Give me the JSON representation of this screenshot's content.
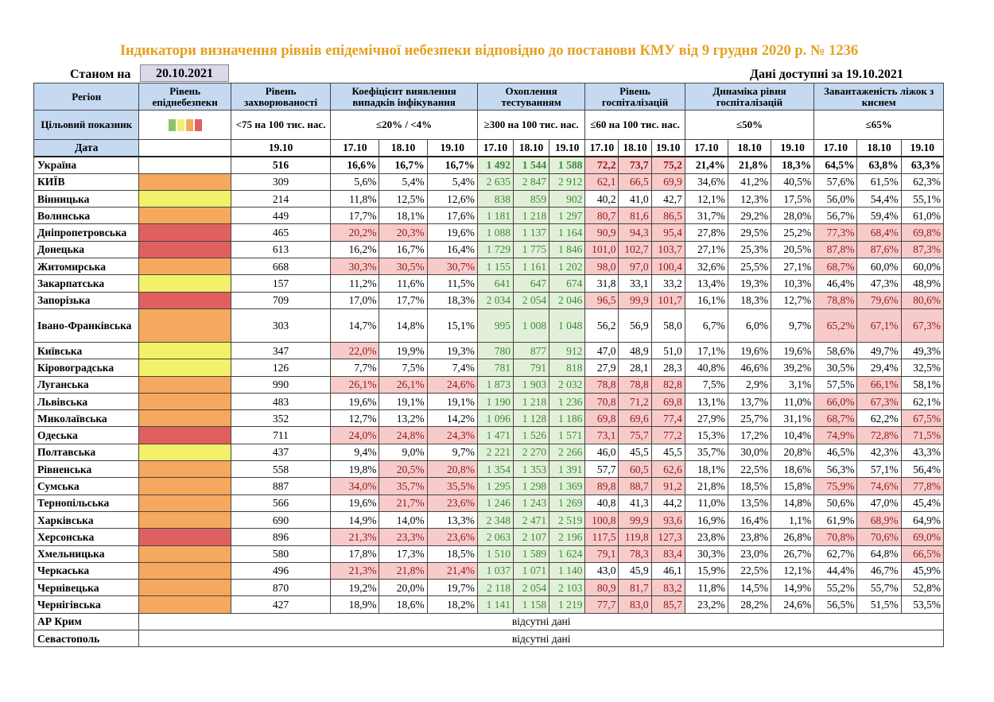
{
  "title": "Індикатори визначення рівнів епідемічної небезпеки відповідно до постанови КМУ від 9 грудня 2020 р. № 1236",
  "as_of_label": "Станом на",
  "as_of_date": "20.10.2021",
  "available_text": "Дані доступні за 19.10.2021",
  "colors": {
    "orange": "#f5a95e",
    "yellow": "#f3f06a",
    "red": "#e06060",
    "green_bg": "#e2f0d9",
    "red_bg": "#f8cbcb",
    "header_bg": "#c5d9f1"
  },
  "headers": {
    "region": "Регіон",
    "level": "Рівень епіднебезпеки",
    "incidence": "Рівень захворюваності",
    "detection": "Коефіцієнт виявлення випадків інфікування",
    "testing": "Охоплення тестуванням",
    "hosp": "Рівень госпіталізацій",
    "hosp_dyn": "Динаміка рівня госпіталізацій",
    "beds": "Завантаженість ліжок з киснем"
  },
  "targets": {
    "label": "Цільовий показник",
    "incidence": "<75 на 100 тис. нас.",
    "detection": "≤20% / <4%",
    "testing": "≥300 на 100 тис. нас.",
    "hosp": "≤60 на 100 тис. нас.",
    "hosp_dyn": "≤50%",
    "beds": "≤65%"
  },
  "dates": {
    "label": "Дата",
    "d1": "17.10",
    "d2": "18.10",
    "d3": "19.10"
  },
  "legend_colors": [
    "#8ec36a",
    "#f3f06a",
    "#f5a95e",
    "#e06060"
  ],
  "missing_text": "відсутні дані",
  "rows": [
    {
      "name": "Україна",
      "level": "",
      "inc": "516",
      "det": [
        "16,6%",
        "16,7%",
        "16,7%"
      ],
      "test": [
        "1 492",
        "1 544",
        "1 588"
      ],
      "hosp": [
        "72,2",
        "73,7",
        "75,2"
      ],
      "dyn": [
        "21,4%",
        "21,8%",
        "18,3%"
      ],
      "beds": [
        "64,5%",
        "63,8%",
        "63,3%"
      ]
    },
    {
      "name": "КИЇВ",
      "level": "orange",
      "inc": "309",
      "det": [
        "5,6%",
        "5,4%",
        "5,4%"
      ],
      "test": [
        "2 635",
        "2 847",
        "2 912"
      ],
      "hosp": [
        "62,1",
        "66,5",
        "69,9"
      ],
      "dyn": [
        "34,6%",
        "41,2%",
        "40,5%"
      ],
      "beds": [
        "57,6%",
        "61,5%",
        "62,3%"
      ]
    },
    {
      "name": "Вінницька",
      "level": "yellow",
      "inc": "214",
      "det": [
        "11,8%",
        "12,5%",
        "12,6%"
      ],
      "test": [
        "838",
        "859",
        "902"
      ],
      "hosp": [
        "40,2",
        "41,0",
        "42,7"
      ],
      "dyn": [
        "12,1%",
        "12,3%",
        "17,5%"
      ],
      "beds": [
        "56,0%",
        "54,4%",
        "55,1%"
      ]
    },
    {
      "name": "Волинська",
      "level": "orange",
      "inc": "449",
      "det": [
        "17,7%",
        "18,1%",
        "17,6%"
      ],
      "test": [
        "1 181",
        "1 218",
        "1 297"
      ],
      "hosp": [
        "80,7",
        "81,6",
        "86,5"
      ],
      "dyn": [
        "31,7%",
        "29,2%",
        "28,0%"
      ],
      "beds": [
        "56,7%",
        "59,4%",
        "61,0%"
      ]
    },
    {
      "name": "Дніпропетровська",
      "level": "red",
      "inc": "465",
      "det": [
        "20,2%",
        "20,3%",
        "19,6%"
      ],
      "test": [
        "1 088",
        "1 137",
        "1 164"
      ],
      "hosp": [
        "90,9",
        "94,3",
        "95,4"
      ],
      "dyn": [
        "27,8%",
        "29,5%",
        "25,2%"
      ],
      "beds": [
        "77,3%",
        "68,4%",
        "69,8%"
      ]
    },
    {
      "name": "Донецька",
      "level": "red",
      "inc": "613",
      "det": [
        "16,2%",
        "16,7%",
        "16,4%"
      ],
      "test": [
        "1 729",
        "1 775",
        "1 846"
      ],
      "hosp": [
        "101,0",
        "102,7",
        "103,7"
      ],
      "dyn": [
        "27,1%",
        "25,3%",
        "20,5%"
      ],
      "beds": [
        "87,8%",
        "87,6%",
        "87,3%"
      ]
    },
    {
      "name": "Житомирська",
      "level": "orange",
      "inc": "668",
      "det": [
        "30,3%",
        "30,5%",
        "30,7%"
      ],
      "test": [
        "1 155",
        "1 161",
        "1 202"
      ],
      "hosp": [
        "98,0",
        "97,0",
        "100,4"
      ],
      "dyn": [
        "32,6%",
        "25,5%",
        "27,1%"
      ],
      "beds": [
        "68,7%",
        "60,0%",
        "60,0%"
      ]
    },
    {
      "name": "Закарпатська",
      "level": "yellow",
      "inc": "157",
      "det": [
        "11,2%",
        "11,6%",
        "11,5%"
      ],
      "test": [
        "641",
        "647",
        "674"
      ],
      "hosp": [
        "31,8",
        "33,1",
        "33,2"
      ],
      "dyn": [
        "13,4%",
        "19,3%",
        "10,3%"
      ],
      "beds": [
        "46,4%",
        "47,3%",
        "48,9%"
      ]
    },
    {
      "name": "Запорізька",
      "level": "red",
      "inc": "709",
      "det": [
        "17,0%",
        "17,7%",
        "18,3%"
      ],
      "test": [
        "2 034",
        "2 054",
        "2 046"
      ],
      "hosp": [
        "96,5",
        "99,9",
        "101,7"
      ],
      "dyn": [
        "16,1%",
        "18,3%",
        "12,7%"
      ],
      "beds": [
        "78,8%",
        "79,6%",
        "80,6%"
      ]
    },
    {
      "name": "Івано-Франківська",
      "level": "orange",
      "inc": "303",
      "det": [
        "14,7%",
        "14,8%",
        "15,1%"
      ],
      "test": [
        "995",
        "1 008",
        "1 048"
      ],
      "hosp": [
        "56,2",
        "56,9",
        "58,0"
      ],
      "dyn": [
        "6,7%",
        "6,0%",
        "9,7%"
      ],
      "beds": [
        "65,2%",
        "67,1%",
        "67,3%"
      ]
    },
    {
      "name": "Київська",
      "level": "yellow",
      "inc": "347",
      "det": [
        "22,0%",
        "19,9%",
        "19,3%"
      ],
      "test": [
        "780",
        "877",
        "912"
      ],
      "hosp": [
        "47,0",
        "48,9",
        "51,0"
      ],
      "dyn": [
        "17,1%",
        "19,6%",
        "19,6%"
      ],
      "beds": [
        "58,6%",
        "49,7%",
        "49,3%"
      ]
    },
    {
      "name": "Кіровоградська",
      "level": "yellow",
      "inc": "126",
      "det": [
        "7,7%",
        "7,5%",
        "7,4%"
      ],
      "test": [
        "781",
        "791",
        "818"
      ],
      "hosp": [
        "27,9",
        "28,1",
        "28,3"
      ],
      "dyn": [
        "40,8%",
        "46,6%",
        "39,2%"
      ],
      "beds": [
        "30,5%",
        "29,4%",
        "32,5%"
      ]
    },
    {
      "name": "Луганська",
      "level": "orange",
      "inc": "990",
      "det": [
        "26,1%",
        "26,1%",
        "24,6%"
      ],
      "test": [
        "1 873",
        "1 903",
        "2 032"
      ],
      "hosp": [
        "78,8",
        "78,8",
        "82,8"
      ],
      "dyn": [
        "7,5%",
        "2,9%",
        "3,1%"
      ],
      "beds": [
        "57,5%",
        "66,1%",
        "58,1%"
      ]
    },
    {
      "name": "Львівська",
      "level": "orange",
      "inc": "483",
      "det": [
        "19,6%",
        "19,1%",
        "19,1%"
      ],
      "test": [
        "1 190",
        "1 218",
        "1 236"
      ],
      "hosp": [
        "70,8",
        "71,2",
        "69,8"
      ],
      "dyn": [
        "13,1%",
        "13,7%",
        "11,0%"
      ],
      "beds": [
        "66,0%",
        "67,3%",
        "62,1%"
      ]
    },
    {
      "name": "Миколаївська",
      "level": "orange",
      "inc": "352",
      "det": [
        "12,7%",
        "13,2%",
        "14,2%"
      ],
      "test": [
        "1 096",
        "1 128",
        "1 186"
      ],
      "hosp": [
        "69,8",
        "69,6",
        "77,4"
      ],
      "dyn": [
        "27,9%",
        "25,7%",
        "31,1%"
      ],
      "beds": [
        "68,7%",
        "62,2%",
        "67,5%"
      ]
    },
    {
      "name": "Одеська",
      "level": "red",
      "inc": "711",
      "det": [
        "24,0%",
        "24,8%",
        "24,3%"
      ],
      "test": [
        "1 471",
        "1 526",
        "1 571"
      ],
      "hosp": [
        "73,1",
        "75,7",
        "77,2"
      ],
      "dyn": [
        "15,3%",
        "17,2%",
        "10,4%"
      ],
      "beds": [
        "74,9%",
        "72,8%",
        "71,5%"
      ]
    },
    {
      "name": "Полтавська",
      "level": "yellow",
      "inc": "437",
      "det": [
        "9,4%",
        "9,0%",
        "9,7%"
      ],
      "test": [
        "2 221",
        "2 270",
        "2 266"
      ],
      "hosp": [
        "46,0",
        "45,5",
        "45,5"
      ],
      "dyn": [
        "35,7%",
        "30,0%",
        "20,8%"
      ],
      "beds": [
        "46,5%",
        "42,3%",
        "43,3%"
      ]
    },
    {
      "name": "Рівненська",
      "level": "orange",
      "inc": "558",
      "det": [
        "19,8%",
        "20,5%",
        "20,8%"
      ],
      "test": [
        "1 354",
        "1 353",
        "1 391"
      ],
      "hosp": [
        "57,7",
        "60,5",
        "62,6"
      ],
      "dyn": [
        "18,1%",
        "22,5%",
        "18,6%"
      ],
      "beds": [
        "56,3%",
        "57,1%",
        "56,4%"
      ]
    },
    {
      "name": "Сумська",
      "level": "orange",
      "inc": "887",
      "det": [
        "34,0%",
        "35,7%",
        "35,5%"
      ],
      "test": [
        "1 295",
        "1 298",
        "1 369"
      ],
      "hosp": [
        "89,8",
        "88,7",
        "91,2"
      ],
      "dyn": [
        "21,8%",
        "18,5%",
        "15,8%"
      ],
      "beds": [
        "75,9%",
        "74,6%",
        "77,8%"
      ]
    },
    {
      "name": "Тернопільська",
      "level": "orange",
      "inc": "566",
      "det": [
        "19,6%",
        "21,7%",
        "23,6%"
      ],
      "test": [
        "1 246",
        "1 243",
        "1 269"
      ],
      "hosp": [
        "40,8",
        "41,3",
        "44,2"
      ],
      "dyn": [
        "11,0%",
        "13,5%",
        "14,8%"
      ],
      "beds": [
        "50,6%",
        "47,0%",
        "45,4%"
      ]
    },
    {
      "name": "Харківська",
      "level": "orange",
      "inc": "690",
      "det": [
        "14,9%",
        "14,0%",
        "13,3%"
      ],
      "test": [
        "2 348",
        "2 471",
        "2 519"
      ],
      "hosp": [
        "100,8",
        "99,9",
        "93,6"
      ],
      "dyn": [
        "16,9%",
        "16,4%",
        "1,1%"
      ],
      "beds": [
        "61,9%",
        "68,9%",
        "64,9%"
      ]
    },
    {
      "name": "Херсонська",
      "level": "red",
      "inc": "896",
      "det": [
        "21,3%",
        "23,3%",
        "23,6%"
      ],
      "test": [
        "2 063",
        "2 107",
        "2 196"
      ],
      "hosp": [
        "117,5",
        "119,8",
        "127,3"
      ],
      "dyn": [
        "23,8%",
        "23,8%",
        "26,8%"
      ],
      "beds": [
        "70,8%",
        "70,6%",
        "69,0%"
      ]
    },
    {
      "name": "Хмельницька",
      "level": "orange",
      "inc": "580",
      "det": [
        "17,8%",
        "17,3%",
        "18,5%"
      ],
      "test": [
        "1 510",
        "1 589",
        "1 624"
      ],
      "hosp": [
        "79,1",
        "78,3",
        "83,4"
      ],
      "dyn": [
        "30,3%",
        "23,0%",
        "26,7%"
      ],
      "beds": [
        "62,7%",
        "64,8%",
        "66,5%"
      ]
    },
    {
      "name": "Черкаська",
      "level": "orange",
      "inc": "496",
      "det": [
        "21,3%",
        "21,8%",
        "21,4%"
      ],
      "test": [
        "1 037",
        "1 071",
        "1 140"
      ],
      "hosp": [
        "43,0",
        "45,9",
        "46,1"
      ],
      "dyn": [
        "15,9%",
        "22,5%",
        "12,1%"
      ],
      "beds": [
        "44,4%",
        "46,7%",
        "45,9%"
      ]
    },
    {
      "name": "Чернівецька",
      "level": "orange",
      "inc": "870",
      "det": [
        "19,2%",
        "20,0%",
        "19,7%"
      ],
      "test": [
        "2 118",
        "2 054",
        "2 103"
      ],
      "hosp": [
        "80,9",
        "81,7",
        "83,2"
      ],
      "dyn": [
        "11,8%",
        "14,5%",
        "14,9%"
      ],
      "beds": [
        "55,2%",
        "55,7%",
        "52,8%"
      ]
    },
    {
      "name": "Чернігівська",
      "level": "orange",
      "inc": "427",
      "det": [
        "18,9%",
        "18,6%",
        "18,2%"
      ],
      "test": [
        "1 141",
        "1 158",
        "1 219"
      ],
      "hosp": [
        "77,7",
        "83,0",
        "85,7"
      ],
      "dyn": [
        "23,2%",
        "28,2%",
        "24,6%"
      ],
      "beds": [
        "56,5%",
        "51,5%",
        "53,5%"
      ]
    }
  ],
  "missing_rows": [
    "АР Крим",
    "Севастополь"
  ]
}
